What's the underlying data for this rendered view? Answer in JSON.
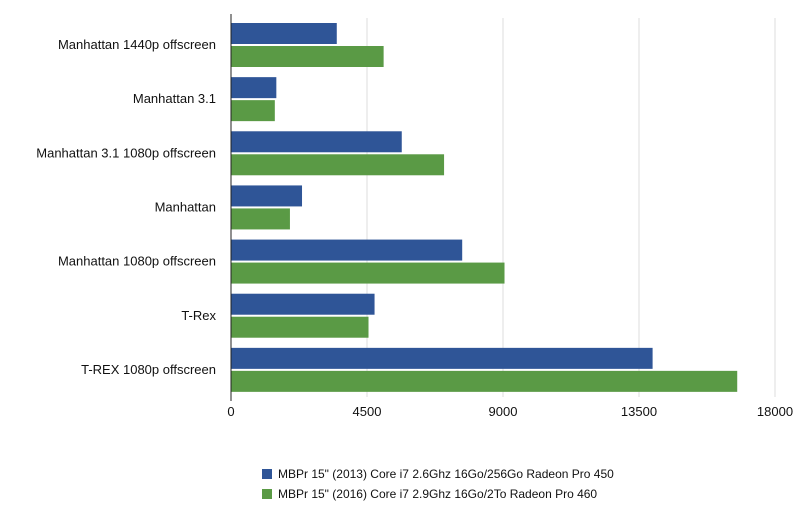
{
  "chart_data": {
    "type": "bar",
    "orientation": "horizontal",
    "title": "",
    "xlabel": "",
    "ylabel": "",
    "categories": [
      "Manhattan 1440p offscreen",
      "Manhattan 3.1",
      "Manhattan 3.1 1080p offscreen",
      "Manhattan",
      "Manhattan 1080p offscreen",
      "T-Rex",
      "T-REX 1080p offscreen"
    ],
    "series": [
      {
        "name": "MBPr 15\" (2013) Core i7 2.6Ghz 16Go/256Go Radeon Pro 450",
        "color": "#2f5597",
        "values": [
          3500,
          1500,
          5650,
          2350,
          7650,
          4750,
          13950
        ]
      },
      {
        "name": "MBPr 15\" (2016) Core i7 2.9Ghz 16Go/2To Radeon Pro 460",
        "color": "#5a9a45",
        "values": [
          5050,
          1450,
          7050,
          1950,
          9050,
          4550,
          16750
        ]
      }
    ],
    "xlim": [
      0,
      18000
    ],
    "xticks": [
      0,
      4500,
      9000,
      13500,
      18000
    ],
    "xtick_labels": [
      "0",
      "4500",
      "9000",
      "13500",
      "18000"
    ],
    "grid": "vertical",
    "legend_position": "bottom"
  }
}
